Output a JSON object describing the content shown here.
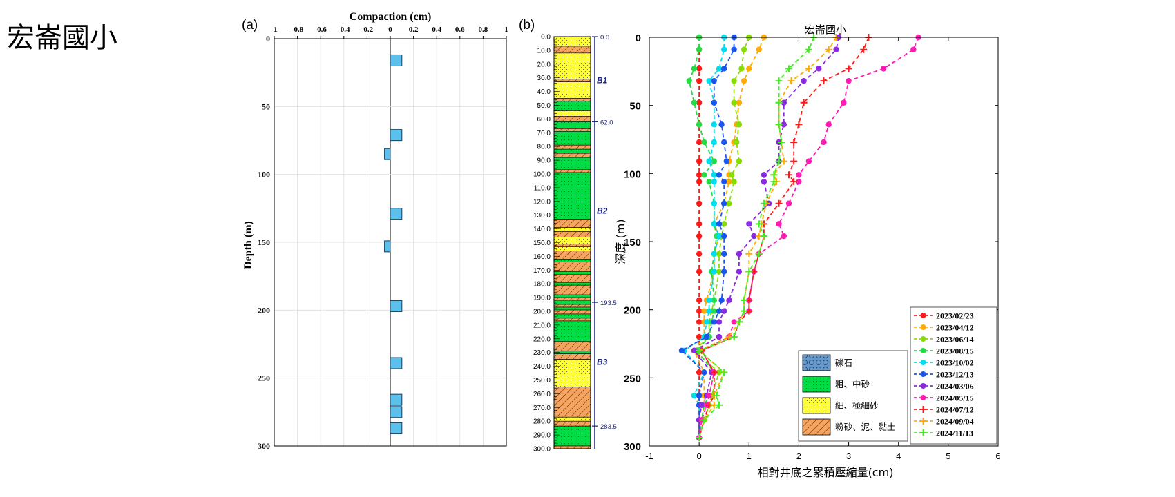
{
  "page": {
    "title": "宏崙國小"
  },
  "panel_a": {
    "label": "(a)",
    "title": "Compaction (cm)",
    "ylabel": "Depth (m)",
    "xlim": [
      -1,
      1
    ],
    "ylim": [
      0,
      300
    ],
    "xticks": [
      "-1",
      "-0.8",
      "-0.6",
      "-0.4",
      "-0.2",
      "0",
      "0.2",
      "0.4",
      "0.6",
      "0.8",
      "1"
    ],
    "xtick_values": [
      -1,
      -0.8,
      -0.6,
      -0.4,
      -0.2,
      0,
      0.2,
      0.4,
      0.6,
      0.8,
      1
    ],
    "yticks": [
      "0",
      "50",
      "100",
      "150",
      "200",
      "250",
      "300"
    ],
    "ytick_values": [
      0,
      50,
      100,
      150,
      200,
      250,
      300
    ]
  },
  "panel_b": {
    "label": "(b)",
    "depth_ticks": [
      "0.0",
      "10.0",
      "20.0",
      "30.0",
      "40.0",
      "50.0",
      "60.0",
      "70.0",
      "80.0",
      "90.0",
      "100.0",
      "110.0",
      "120.0",
      "130.0",
      "140.0",
      "150.0",
      "160.0",
      "170.0",
      "180.0",
      "190.0",
      "200.0",
      "210.0",
      "220.0",
      "230.0",
      "240.0",
      "250.0",
      "260.0",
      "270.0",
      "280.0",
      "290.0",
      "300.0"
    ],
    "boundaries": [
      {
        "label": "0.0",
        "depth": 0
      },
      {
        "label": "62.0",
        "depth": 62
      },
      {
        "label": "193.5",
        "depth": 193.5
      },
      {
        "label": "283.5",
        "depth": 283.5
      }
    ],
    "units": [
      {
        "label": "B1",
        "depth": 32
      },
      {
        "label": "B2",
        "depth": 127
      },
      {
        "label": "B3",
        "depth": 237
      }
    ],
    "layers": [
      {
        "top": 0,
        "bottom": 7,
        "litho": "fine"
      },
      {
        "top": 7,
        "bottom": 12,
        "litho": "silt"
      },
      {
        "top": 12,
        "bottom": 31,
        "litho": "fine"
      },
      {
        "top": 31,
        "bottom": 33,
        "litho": "silt"
      },
      {
        "top": 33,
        "bottom": 45,
        "litho": "fine"
      },
      {
        "top": 45,
        "bottom": 47,
        "litho": "silt"
      },
      {
        "top": 47,
        "bottom": 54,
        "litho": "coarse"
      },
      {
        "top": 54,
        "bottom": 58,
        "litho": "fine"
      },
      {
        "top": 58,
        "bottom": 62,
        "litho": "silt"
      },
      {
        "top": 62,
        "bottom": 67,
        "litho": "coarse"
      },
      {
        "top": 67,
        "bottom": 69,
        "litho": "silt"
      },
      {
        "top": 69,
        "bottom": 79,
        "litho": "coarse"
      },
      {
        "top": 79,
        "bottom": 82,
        "litho": "silt"
      },
      {
        "top": 82,
        "bottom": 85,
        "litho": "coarse"
      },
      {
        "top": 85,
        "bottom": 88,
        "litho": "silt"
      },
      {
        "top": 88,
        "bottom": 97,
        "litho": "coarse"
      },
      {
        "top": 97,
        "bottom": 99,
        "litho": "silt"
      },
      {
        "top": 99,
        "bottom": 133,
        "litho": "coarse"
      },
      {
        "top": 133,
        "bottom": 139,
        "litho": "silt"
      },
      {
        "top": 139,
        "bottom": 142,
        "litho": "fine"
      },
      {
        "top": 142,
        "bottom": 146,
        "litho": "silt"
      },
      {
        "top": 146,
        "bottom": 151,
        "litho": "fine"
      },
      {
        "top": 151,
        "bottom": 153,
        "litho": "silt"
      },
      {
        "top": 153,
        "bottom": 156,
        "litho": "fine"
      },
      {
        "top": 156,
        "bottom": 162,
        "litho": "silt"
      },
      {
        "top": 162,
        "bottom": 164,
        "litho": "coarse"
      },
      {
        "top": 164,
        "bottom": 171,
        "litho": "silt"
      },
      {
        "top": 171,
        "bottom": 173,
        "litho": "coarse"
      },
      {
        "top": 173,
        "bottom": 179,
        "litho": "silt"
      },
      {
        "top": 179,
        "bottom": 181,
        "litho": "coarse"
      },
      {
        "top": 181,
        "bottom": 188,
        "litho": "silt"
      },
      {
        "top": 188,
        "bottom": 190,
        "litho": "coarse"
      },
      {
        "top": 190,
        "bottom": 192,
        "litho": "silt"
      },
      {
        "top": 192,
        "bottom": 195,
        "litho": "coarse"
      },
      {
        "top": 195,
        "bottom": 197,
        "litho": "silt"
      },
      {
        "top": 197,
        "bottom": 199,
        "litho": "coarse"
      },
      {
        "top": 199,
        "bottom": 202,
        "litho": "silt"
      },
      {
        "top": 202,
        "bottom": 205,
        "litho": "coarse"
      },
      {
        "top": 205,
        "bottom": 207,
        "litho": "silt"
      },
      {
        "top": 207,
        "bottom": 222,
        "litho": "coarse"
      },
      {
        "top": 222,
        "bottom": 229,
        "litho": "silt"
      },
      {
        "top": 229,
        "bottom": 231,
        "litho": "coarse"
      },
      {
        "top": 231,
        "bottom": 235,
        "litho": "silt"
      },
      {
        "top": 235,
        "bottom": 255,
        "litho": "fine"
      },
      {
        "top": 255,
        "bottom": 277,
        "litho": "silt"
      },
      {
        "top": 277,
        "bottom": 280,
        "litho": "fine"
      },
      {
        "top": 280,
        "bottom": 283.5,
        "litho": "silt"
      },
      {
        "top": 283.5,
        "bottom": 298,
        "litho": "coarse"
      },
      {
        "top": 298,
        "bottom": 300,
        "litho": "silt"
      }
    ]
  },
  "legend_litho": [
    {
      "name": "礫石",
      "key": "gravel"
    },
    {
      "name": "粗、中砂",
      "key": "coarse"
    },
    {
      "name": "細、極細砂",
      "key": "fine"
    },
    {
      "name": "粉砂、泥、黏土",
      "key": "silt"
    }
  ],
  "colors": {
    "bar_fill": "#5bc0eb",
    "coarse": "#00dd44",
    "fine": "#ffff33",
    "silt": "#f4a460",
    "gravel": "#6699cc",
    "boundary": "#1a237e"
  },
  "chart_data": [
    {
      "type": "bar",
      "orientation": "horizontal",
      "title": "Compaction (cm)",
      "xlabel": "Compaction (cm)",
      "ylabel": "Depth (m)",
      "xlim": [
        -1,
        1
      ],
      "ylim": [
        0,
        300
      ],
      "bars": [
        {
          "depth": 16,
          "value": 0.1
        },
        {
          "depth": 71,
          "value": 0.1
        },
        {
          "depth": 85,
          "value": -0.05
        },
        {
          "depth": 129,
          "value": 0.1
        },
        {
          "depth": 153,
          "value": -0.05
        },
        {
          "depth": 197,
          "value": 0.1
        },
        {
          "depth": 239,
          "value": 0.1
        },
        {
          "depth": 266,
          "value": 0.1
        },
        {
          "depth": 275,
          "value": 0.1
        },
        {
          "depth": 287,
          "value": 0.1
        }
      ]
    },
    {
      "type": "line",
      "title": "宏崙國小",
      "xlabel": "相對井底之累積壓縮量(cm)",
      "ylabel": "深度 (m)",
      "xlim": [
        -1,
        6
      ],
      "ylim": [
        0,
        300
      ],
      "xticks": [
        "-1",
        "0",
        "1",
        "2",
        "3",
        "4",
        "5",
        "6"
      ],
      "xtick_values": [
        -1,
        0,
        1,
        2,
        3,
        4,
        5,
        6
      ],
      "yticks": [
        "0",
        "50",
        "100",
        "150",
        "200",
        "250",
        "300"
      ],
      "ytick_values": [
        0,
        50,
        100,
        150,
        200,
        250,
        300
      ],
      "depths": [
        0,
        9,
        23,
        32,
        48,
        64,
        77,
        91,
        101,
        106,
        122,
        137,
        146,
        159,
        172,
        193,
        201,
        209,
        220,
        230,
        246,
        263,
        270,
        281,
        294
      ],
      "legend_position": "bottom-right",
      "series": [
        {
          "name": "2023/02/23",
          "color": "#ff1a1a",
          "marker": "circle",
          "values": [
            0,
            0,
            0,
            0,
            0,
            0,
            0,
            0,
            0,
            0,
            0,
            0,
            0,
            0,
            0,
            0,
            0,
            0,
            0,
            0,
            0,
            0,
            0,
            0,
            0
          ]
        },
        {
          "name": "2023/04/12",
          "color": "#ffaa00",
          "marker": "circle",
          "values": [
            1.3,
            1.2,
            1.0,
            0.9,
            0.8,
            0.75,
            0.7,
            0.6,
            0.6,
            0.6,
            0.5,
            0.3,
            0.4,
            0.3,
            0.3,
            0.15,
            0.1,
            0.1,
            0.1,
            -0.1,
            0.1,
            0.1,
            0.1,
            0.05,
            0
          ]
        },
        {
          "name": "2023/06/14",
          "color": "#88dd00",
          "marker": "circle",
          "values": [
            1.0,
            0.9,
            0.85,
            0.7,
            0.7,
            0.8,
            0.75,
            0.8,
            0.65,
            0.7,
            0.6,
            0.5,
            0.45,
            0.4,
            0.4,
            0.3,
            0.25,
            0.2,
            0.2,
            -0.1,
            0.4,
            0.25,
            0.2,
            0.1,
            0
          ]
        },
        {
          "name": "2023/08/15",
          "color": "#22dd44",
          "marker": "circle",
          "values": [
            0,
            0,
            -0.1,
            -0.2,
            -0.1,
            0,
            0.1,
            0.3,
            0.1,
            0.2,
            0.3,
            0.3,
            0.35,
            0.3,
            0.25,
            0.3,
            0.3,
            0.25,
            0.2,
            -0.05,
            0.3,
            0.2,
            0.1,
            0.05,
            0
          ]
        },
        {
          "name": "2023/10/02",
          "color": "#00ddee",
          "marker": "circle",
          "values": [
            0.5,
            0.5,
            0.4,
            0.2,
            0.3,
            0.3,
            0.3,
            0.2,
            0.3,
            0.3,
            0.3,
            0.3,
            0.4,
            0.3,
            0.3,
            0.2,
            0.2,
            0.15,
            0.1,
            -0.3,
            0.1,
            -0.1,
            0,
            0,
            0
          ]
        },
        {
          "name": "2023/12/13",
          "color": "#1a55ee",
          "marker": "circle",
          "values": [
            0.7,
            0.7,
            0.5,
            0.3,
            0.3,
            0.45,
            0.5,
            0.55,
            0.4,
            0.5,
            0.5,
            0.4,
            0.5,
            0.5,
            0.5,
            0.45,
            0.4,
            0.3,
            0.15,
            -0.35,
            0.1,
            0,
            0,
            0,
            0
          ]
        },
        {
          "name": "2024/03/06",
          "color": "#8a2be2",
          "marker": "circle",
          "values": [
            2.8,
            2.75,
            2.4,
            2.1,
            1.7,
            1.7,
            1.6,
            1.6,
            1.3,
            1.3,
            1.4,
            1.0,
            1.1,
            0.8,
            0.8,
            0.6,
            0.5,
            0.4,
            0.4,
            -0.1,
            0.25,
            0.15,
            0.05,
            0,
            0
          ]
        },
        {
          "name": "2024/05/15",
          "color": "#ff1ab3",
          "marker": "circle",
          "values": [
            4.4,
            4.3,
            3.7,
            3.0,
            2.9,
            2.6,
            2.5,
            2.2,
            2.0,
            2.0,
            1.8,
            1.6,
            1.7,
            1.2,
            1.1,
            1.0,
            1.0,
            0.7,
            0.6,
            0.05,
            0.3,
            0.2,
            0.15,
            0.05,
            0
          ]
        },
        {
          "name": "2024/07/12",
          "color": "#ff1a1a",
          "marker": "plus",
          "values": [
            3.4,
            3.3,
            3.0,
            2.5,
            2.1,
            2.0,
            1.9,
            1.9,
            1.8,
            1.9,
            1.6,
            1.3,
            1.3,
            1.2,
            1.1,
            1.0,
            1.0,
            0.8,
            0.7,
            0.05,
            0.3,
            0.3,
            0.2,
            0.1,
            0
          ]
        },
        {
          "name": "2024/09/04",
          "color": "#ffaa00",
          "marker": "plus",
          "values": [
            2.75,
            2.6,
            2.2,
            1.85,
            1.6,
            1.6,
            1.65,
            1.7,
            1.5,
            1.55,
            1.35,
            1.25,
            1.2,
            1.0,
            1.0,
            0.9,
            0.9,
            0.8,
            0.6,
            0,
            0.5,
            0.3,
            0.3,
            0.1,
            0
          ]
        },
        {
          "name": "2024/11/13",
          "color": "#44ee22",
          "marker": "plus",
          "values": [
            2.3,
            2.2,
            1.8,
            1.6,
            1.6,
            1.6,
            1.65,
            1.6,
            1.5,
            1.5,
            1.3,
            1.2,
            1.3,
            1.2,
            1.0,
            0.9,
            0.9,
            0.8,
            0.7,
            0,
            0.5,
            0.35,
            0.4,
            0.1,
            0
          ]
        }
      ]
    }
  ]
}
